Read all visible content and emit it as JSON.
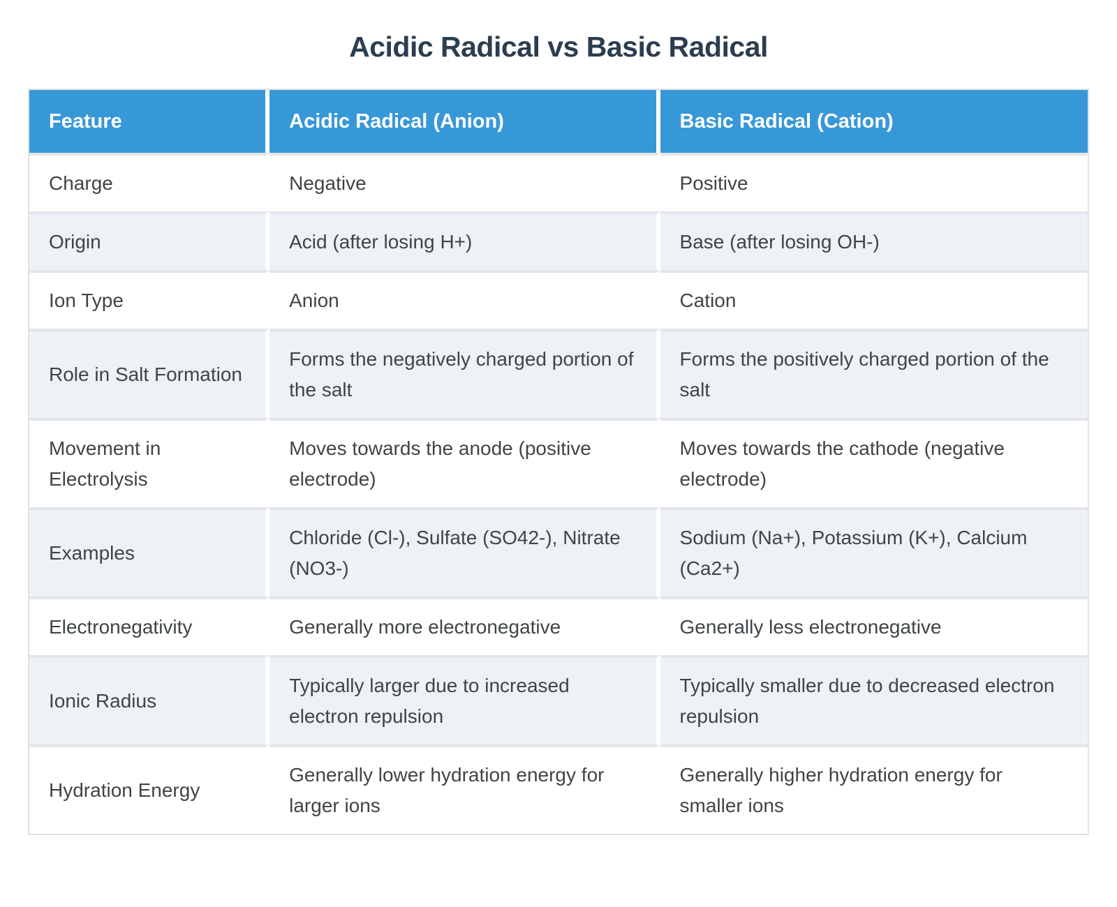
{
  "page": {
    "title": "Acidic Radical vs Basic Radical"
  },
  "colors": {
    "header_bg": "#3798d8",
    "header_text": "#ffffff",
    "title_text": "#2c3d50",
    "body_text": "#3f4448",
    "row_bg": "#ffffff",
    "row_alt_bg": "#eef2f7",
    "row_divider": "#e2e6ea",
    "outer_border": "#e2e2e2"
  },
  "table": {
    "headers": [
      "Feature",
      "Acidic Radical (Anion)",
      "Basic Radical (Cation)"
    ],
    "rows": [
      {
        "feature": "Charge",
        "acidic": "Negative",
        "basic": "Positive"
      },
      {
        "feature": "Origin",
        "acidic": "Acid (after losing H+)",
        "basic": "Base (after losing OH-)"
      },
      {
        "feature": "Ion Type",
        "acidic": "Anion",
        "basic": "Cation"
      },
      {
        "feature": "Role in Salt Formation",
        "acidic": "Forms the negatively charged portion of the salt",
        "basic": "Forms the positively charged portion of the salt"
      },
      {
        "feature": "Movement in Electrolysis",
        "acidic": "Moves towards the anode (positive electrode)",
        "basic": "Moves towards the cathode (negative electrode)"
      },
      {
        "feature": "Examples",
        "acidic": "Chloride (Cl-), Sulfate (SO42-), Nitrate (NO3-)",
        "basic": "Sodium (Na+), Potassium (K+), Calcium (Ca2+)"
      },
      {
        "feature": "Electronegativity",
        "acidic": "Generally more electronegative",
        "basic": "Generally less electronegative"
      },
      {
        "feature": "Ionic Radius",
        "acidic": "Typically larger due to increased electron repulsion",
        "basic": "Typically smaller due to decreased electron repulsion"
      },
      {
        "feature": "Hydration Energy",
        "acidic": "Generally lower hydration energy for larger ions",
        "basic": "Generally higher hydration energy for smaller ions"
      }
    ]
  },
  "chart_data": {
    "type": "table",
    "title": "Acidic Radical vs Basic Radical",
    "columns": [
      "Feature",
      "Acidic Radical (Anion)",
      "Basic Radical (Cation)"
    ],
    "rows": [
      [
        "Charge",
        "Negative",
        "Positive"
      ],
      [
        "Origin",
        "Acid (after losing H+)",
        "Base (after losing OH-)"
      ],
      [
        "Ion Type",
        "Anion",
        "Cation"
      ],
      [
        "Role in Salt Formation",
        "Forms the negatively charged portion of the salt",
        "Forms the positively charged portion of the salt"
      ],
      [
        "Movement in Electrolysis",
        "Moves towards the anode (positive electrode)",
        "Moves towards the cathode (negative electrode)"
      ],
      [
        "Examples",
        "Chloride (Cl-), Sulfate (SO42-), Nitrate (NO3-)",
        "Sodium (Na+), Potassium (K+), Calcium (Ca2+)"
      ],
      [
        "Electronegativity",
        "Generally more electronegative",
        "Generally less electronegative"
      ],
      [
        "Ionic Radius",
        "Typically larger due to increased electron repulsion",
        "Typically smaller due to decreased electron repulsion"
      ],
      [
        "Hydration Energy",
        "Generally lower hydration energy for larger ions",
        "Generally higher hydration energy for smaller ions"
      ]
    ],
    "layout": {
      "header_position": "top",
      "zebra_striping": true
    }
  }
}
